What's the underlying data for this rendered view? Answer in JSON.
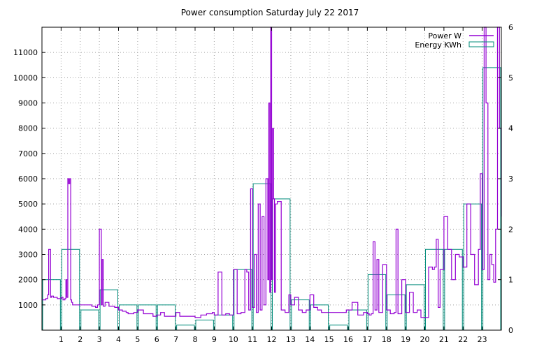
{
  "chart_data": {
    "type": "line",
    "title": "Power consumption Saturday July 22 2017",
    "xlabel": "",
    "ylabel": "",
    "xlim": [
      0,
      24
    ],
    "ylim": [
      0,
      12000
    ],
    "y2lim": [
      0,
      6
    ],
    "xticks": [
      1,
      2,
      3,
      4,
      5,
      6,
      7,
      8,
      9,
      10,
      11,
      12,
      13,
      14,
      15,
      16,
      17,
      18,
      19,
      20,
      21,
      22,
      23
    ],
    "yticks": [
      1000,
      2000,
      3000,
      4000,
      5000,
      6000,
      7000,
      8000,
      9000,
      10000,
      11000
    ],
    "y2ticks": [
      0,
      1,
      2,
      3,
      4,
      5,
      6
    ],
    "grid": true,
    "legend_position": "top-right",
    "series": [
      {
        "name": "Power W",
        "kind": "line",
        "axis": "y",
        "color": "#9400d3",
        "x": [
          0.0,
          0.2,
          0.3,
          0.35,
          0.45,
          0.5,
          0.6,
          0.8,
          1.0,
          1.1,
          1.2,
          1.25,
          1.3,
          1.35,
          1.4,
          1.45,
          1.5,
          1.55,
          1.6,
          1.7,
          2.0,
          2.3,
          2.6,
          2.8,
          2.9,
          3.0,
          3.1,
          3.15,
          3.2,
          3.3,
          3.5,
          3.8,
          4.0,
          4.2,
          4.4,
          4.5,
          4.8,
          5.0,
          5.3,
          5.5,
          5.8,
          6.0,
          6.2,
          6.4,
          6.5,
          6.8,
          7.0,
          7.2,
          7.5,
          7.8,
          8.0,
          8.3,
          8.6,
          8.9,
          9.0,
          9.2,
          9.4,
          9.6,
          9.8,
          10.0,
          10.2,
          10.4,
          10.6,
          10.7,
          10.8,
          10.9,
          11.0,
          11.1,
          11.2,
          11.3,
          11.4,
          11.5,
          11.6,
          11.7,
          11.8,
          11.85,
          11.9,
          11.95,
          12.0,
          12.05,
          12.1,
          12.15,
          12.2,
          12.3,
          12.5,
          12.7,
          12.9,
          13.0,
          13.2,
          13.4,
          13.6,
          13.8,
          14.0,
          14.2,
          14.4,
          14.6,
          14.8,
          15.0,
          15.3,
          15.6,
          15.9,
          16.2,
          16.5,
          16.8,
          17.0,
          17.1,
          17.2,
          17.3,
          17.4,
          17.5,
          17.6,
          17.8,
          18.0,
          18.2,
          18.4,
          18.5,
          18.6,
          18.8,
          19.0,
          19.2,
          19.4,
          19.6,
          19.8,
          20.0,
          20.2,
          20.4,
          20.5,
          20.6,
          20.7,
          20.8,
          21.0,
          21.2,
          21.4,
          21.6,
          21.8,
          22.0,
          22.2,
          22.4,
          22.6,
          22.8,
          22.9,
          23.0,
          23.1,
          23.2,
          23.3,
          23.4,
          23.5,
          23.6,
          23.7,
          23.8,
          23.9,
          24.0
        ],
        "values": [
          1200,
          1250,
          1400,
          3200,
          1300,
          1350,
          1300,
          1250,
          1300,
          1200,
          1250,
          2000,
          1300,
          6000,
          5800,
          6000,
          1200,
          1100,
          1000,
          1000,
          1000,
          1000,
          950,
          900,
          1000,
          4000,
          1000,
          2800,
          950,
          1100,
          950,
          900,
          800,
          750,
          700,
          650,
          700,
          800,
          650,
          650,
          550,
          600,
          700,
          550,
          550,
          550,
          700,
          550,
          550,
          550,
          500,
          600,
          650,
          700,
          600,
          2300,
          600,
          650,
          600,
          2400,
          650,
          700,
          2400,
          2300,
          800,
          5600,
          900,
          3000,
          700,
          5000,
          800,
          4500,
          1000,
          6000,
          2000,
          9000,
          1500,
          12000,
          2000,
          8000,
          5200,
          1500,
          5000,
          5100,
          800,
          700,
          1400,
          1000,
          1300,
          800,
          700,
          800,
          1400,
          900,
          800,
          700,
          700,
          700,
          700,
          700,
          800,
          1100,
          600,
          700,
          650,
          600,
          650,
          3500,
          800,
          2800,
          700,
          2600,
          800,
          650,
          700,
          4000,
          650,
          2000,
          700,
          1500,
          700,
          800,
          500,
          500,
          2500,
          2400,
          2500,
          3600,
          900,
          2400,
          4500,
          3200,
          2000,
          3000,
          2900,
          2500,
          5000,
          3000,
          1800,
          3200,
          6200,
          2400,
          12000,
          9000,
          2000,
          3000,
          2600,
          1900,
          4000,
          12000,
          8000,
          4500
        ]
      },
      {
        "name": "Energy KWh",
        "kind": "bar",
        "axis": "y2",
        "color": "#008b7a",
        "categories": [
          0,
          1,
          2,
          3,
          4,
          5,
          6,
          7,
          8,
          9,
          10,
          11,
          12,
          13,
          14,
          15,
          16,
          17,
          18,
          19,
          20,
          21,
          22,
          23
        ],
        "values": [
          1.0,
          1.6,
          0.4,
          0.8,
          0.5,
          0.5,
          0.5,
          0.1,
          0.2,
          0.3,
          1.2,
          2.9,
          2.6,
          0.6,
          0.5,
          0.1,
          0.4,
          1.1,
          0.7,
          0.9,
          1.6,
          1.6,
          2.5,
          5.2
        ]
      }
    ]
  }
}
